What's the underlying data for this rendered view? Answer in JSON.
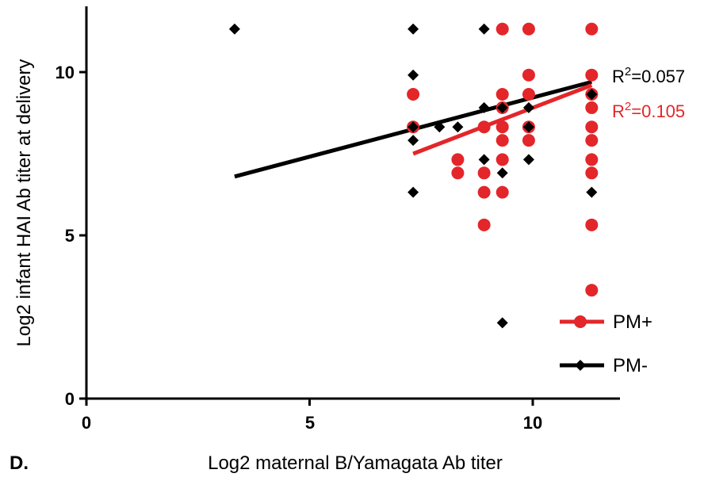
{
  "panel_label": "D.",
  "chart_data": {
    "type": "scatter",
    "title": "",
    "xlabel": "Log2 maternal B/Yamagata Ab titer",
    "ylabel": "Log2 infant HAI Ab titer at delivery",
    "xlim": [
      0,
      12
    ],
    "ylim": [
      0,
      12
    ],
    "x_ticks": [
      "0",
      "5",
      "10"
    ],
    "y_ticks": [
      "0",
      "5",
      "10"
    ],
    "grid": false,
    "legend_position": "bottom-right",
    "series": [
      {
        "name": "PM+",
        "color": "#e3262a",
        "marker": "circle",
        "points": [
          [
            7.32,
            9.32
          ],
          [
            7.32,
            8.32
          ],
          [
            8.32,
            7.32
          ],
          [
            8.32,
            6.91
          ],
          [
            8.91,
            8.32
          ],
          [
            8.91,
            6.91
          ],
          [
            8.91,
            6.32
          ],
          [
            8.91,
            5.32
          ],
          [
            9.32,
            11.32
          ],
          [
            9.32,
            9.32
          ],
          [
            9.32,
            8.91
          ],
          [
            9.32,
            8.32
          ],
          [
            9.32,
            7.91
          ],
          [
            9.32,
            7.32
          ],
          [
            9.32,
            6.32
          ],
          [
            9.91,
            11.32
          ],
          [
            9.91,
            9.91
          ],
          [
            9.91,
            9.32
          ],
          [
            9.91,
            8.32
          ],
          [
            9.91,
            7.91
          ],
          [
            11.32,
            11.32
          ],
          [
            11.32,
            9.91
          ],
          [
            11.32,
            9.32
          ],
          [
            11.32,
            8.91
          ],
          [
            11.32,
            8.32
          ],
          [
            11.32,
            7.91
          ],
          [
            11.32,
            7.32
          ],
          [
            11.32,
            6.91
          ],
          [
            11.32,
            5.32
          ],
          [
            11.32,
            3.32
          ]
        ],
        "fit": {
          "x": [
            7.32,
            11.32
          ],
          "y": [
            7.5,
            9.6
          ]
        },
        "r2_label": "0.105"
      },
      {
        "name": "PM-",
        "color": "#000000",
        "marker": "diamond",
        "points": [
          [
            3.32,
            11.32
          ],
          [
            7.32,
            11.32
          ],
          [
            7.32,
            9.91
          ],
          [
            7.32,
            8.32
          ],
          [
            7.32,
            7.91
          ],
          [
            7.32,
            6.32
          ],
          [
            7.91,
            8.32
          ],
          [
            8.32,
            8.32
          ],
          [
            8.91,
            11.32
          ],
          [
            8.91,
            8.91
          ],
          [
            8.91,
            7.32
          ],
          [
            9.32,
            8.91
          ],
          [
            9.32,
            6.91
          ],
          [
            9.32,
            2.32
          ],
          [
            9.91,
            8.91
          ],
          [
            9.91,
            8.32
          ],
          [
            9.91,
            7.32
          ],
          [
            11.32,
            9.32
          ],
          [
            11.32,
            6.32
          ]
        ],
        "fit": {
          "x": [
            3.32,
            11.32
          ],
          "y": [
            6.8,
            9.7
          ]
        },
        "r2_label": "0.057"
      }
    ]
  }
}
